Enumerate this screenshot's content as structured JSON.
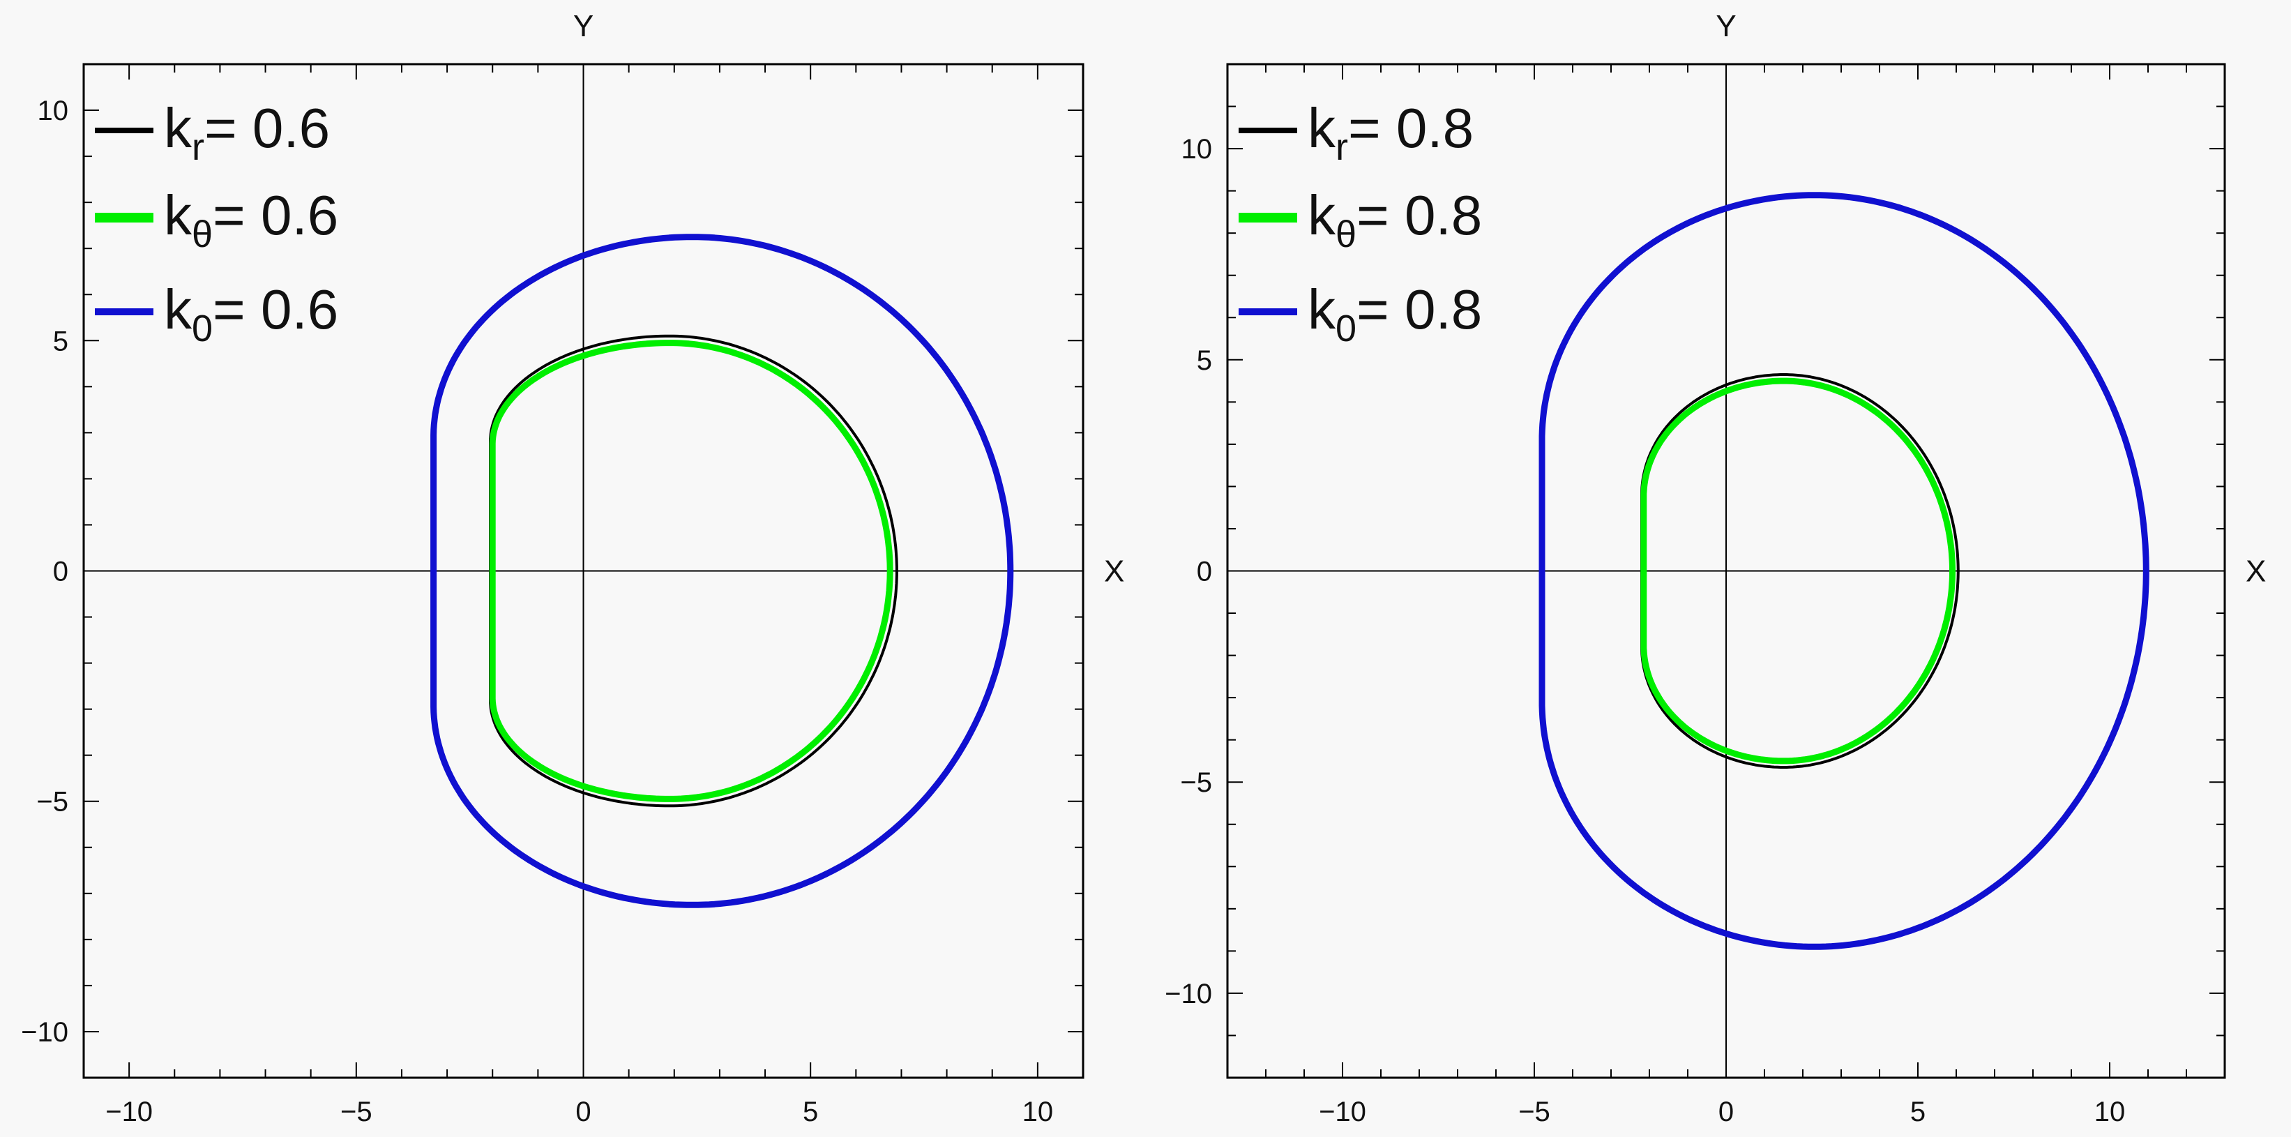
{
  "chart_data": [
    {
      "type": "line",
      "xlabel": "X",
      "ylabel": "Y",
      "xlim": [
        -11,
        11
      ],
      "ylim": [
        -11,
        11
      ],
      "xticks": [
        -10,
        -5,
        0,
        5,
        10
      ],
      "yticks": [
        -10,
        -5,
        0,
        5,
        10
      ],
      "xtick_labels": [
        "−10",
        "−5",
        "0",
        "5",
        "10"
      ],
      "ytick_labels": [
        "−10",
        "−5",
        "0",
        "5",
        "10"
      ],
      "legend_position": "top-left",
      "series": [
        {
          "name": "kr",
          "legend_main": "k",
          "legend_sub": "r",
          "legend_value": "= 0.6",
          "color": "#000000",
          "shape": {
            "x_left": -2.05,
            "x_right": 6.9,
            "x_center": 1.9,
            "y_half_height": 5.1,
            "flat_half": 2.8
          }
        },
        {
          "name": "kθ",
          "legend_main": "k",
          "legend_sub": "θ",
          "legend_value": "= 0.6",
          "color": "#00ee00",
          "shape": {
            "x_left": -2.0,
            "x_right": 6.75,
            "x_center": 1.9,
            "y_half_height": 4.95,
            "flat_half": 2.75
          }
        },
        {
          "name": "k0",
          "legend_main": "k",
          "legend_sub": "0",
          "legend_value": "= 0.6",
          "color": "#1010d0",
          "shape": {
            "x_left": -3.3,
            "x_right": 9.4,
            "x_center": 2.4,
            "y_half_height": 7.25,
            "flat_half": 2.9
          }
        }
      ]
    },
    {
      "type": "line",
      "xlabel": "X",
      "ylabel": "Y",
      "xlim": [
        -13,
        13
      ],
      "ylim": [
        -12,
        12
      ],
      "xticks": [
        -10,
        -5,
        0,
        5,
        10
      ],
      "yticks": [
        -10,
        -5,
        0,
        5,
        10
      ],
      "xtick_labels": [
        "−10",
        "−5",
        "0",
        "5",
        "10"
      ],
      "ytick_labels": [
        "−10",
        "−5",
        "0",
        "5",
        "10"
      ],
      "legend_position": "top-left",
      "series": [
        {
          "name": "kr",
          "legend_main": "k",
          "legend_sub": "r",
          "legend_value": "= 0.8",
          "color": "#000000",
          "shape": {
            "x_left": -2.2,
            "x_right": 6.05,
            "x_center": 1.5,
            "y_half_height": 4.65,
            "flat_half": 1.8
          }
        },
        {
          "name": "kθ",
          "legend_main": "k",
          "legend_sub": "θ",
          "legend_value": "= 0.8",
          "color": "#00ee00",
          "shape": {
            "x_left": -2.15,
            "x_right": 5.9,
            "x_center": 1.5,
            "y_half_height": 4.5,
            "flat_half": 1.75
          }
        },
        {
          "name": "k0",
          "legend_main": "k",
          "legend_sub": "0",
          "legend_value": "= 0.8",
          "color": "#1010d0",
          "shape": {
            "x_left": -4.8,
            "x_right": 10.95,
            "x_center": 2.3,
            "y_half_height": 8.9,
            "flat_half": 3.1
          }
        }
      ]
    }
  ]
}
